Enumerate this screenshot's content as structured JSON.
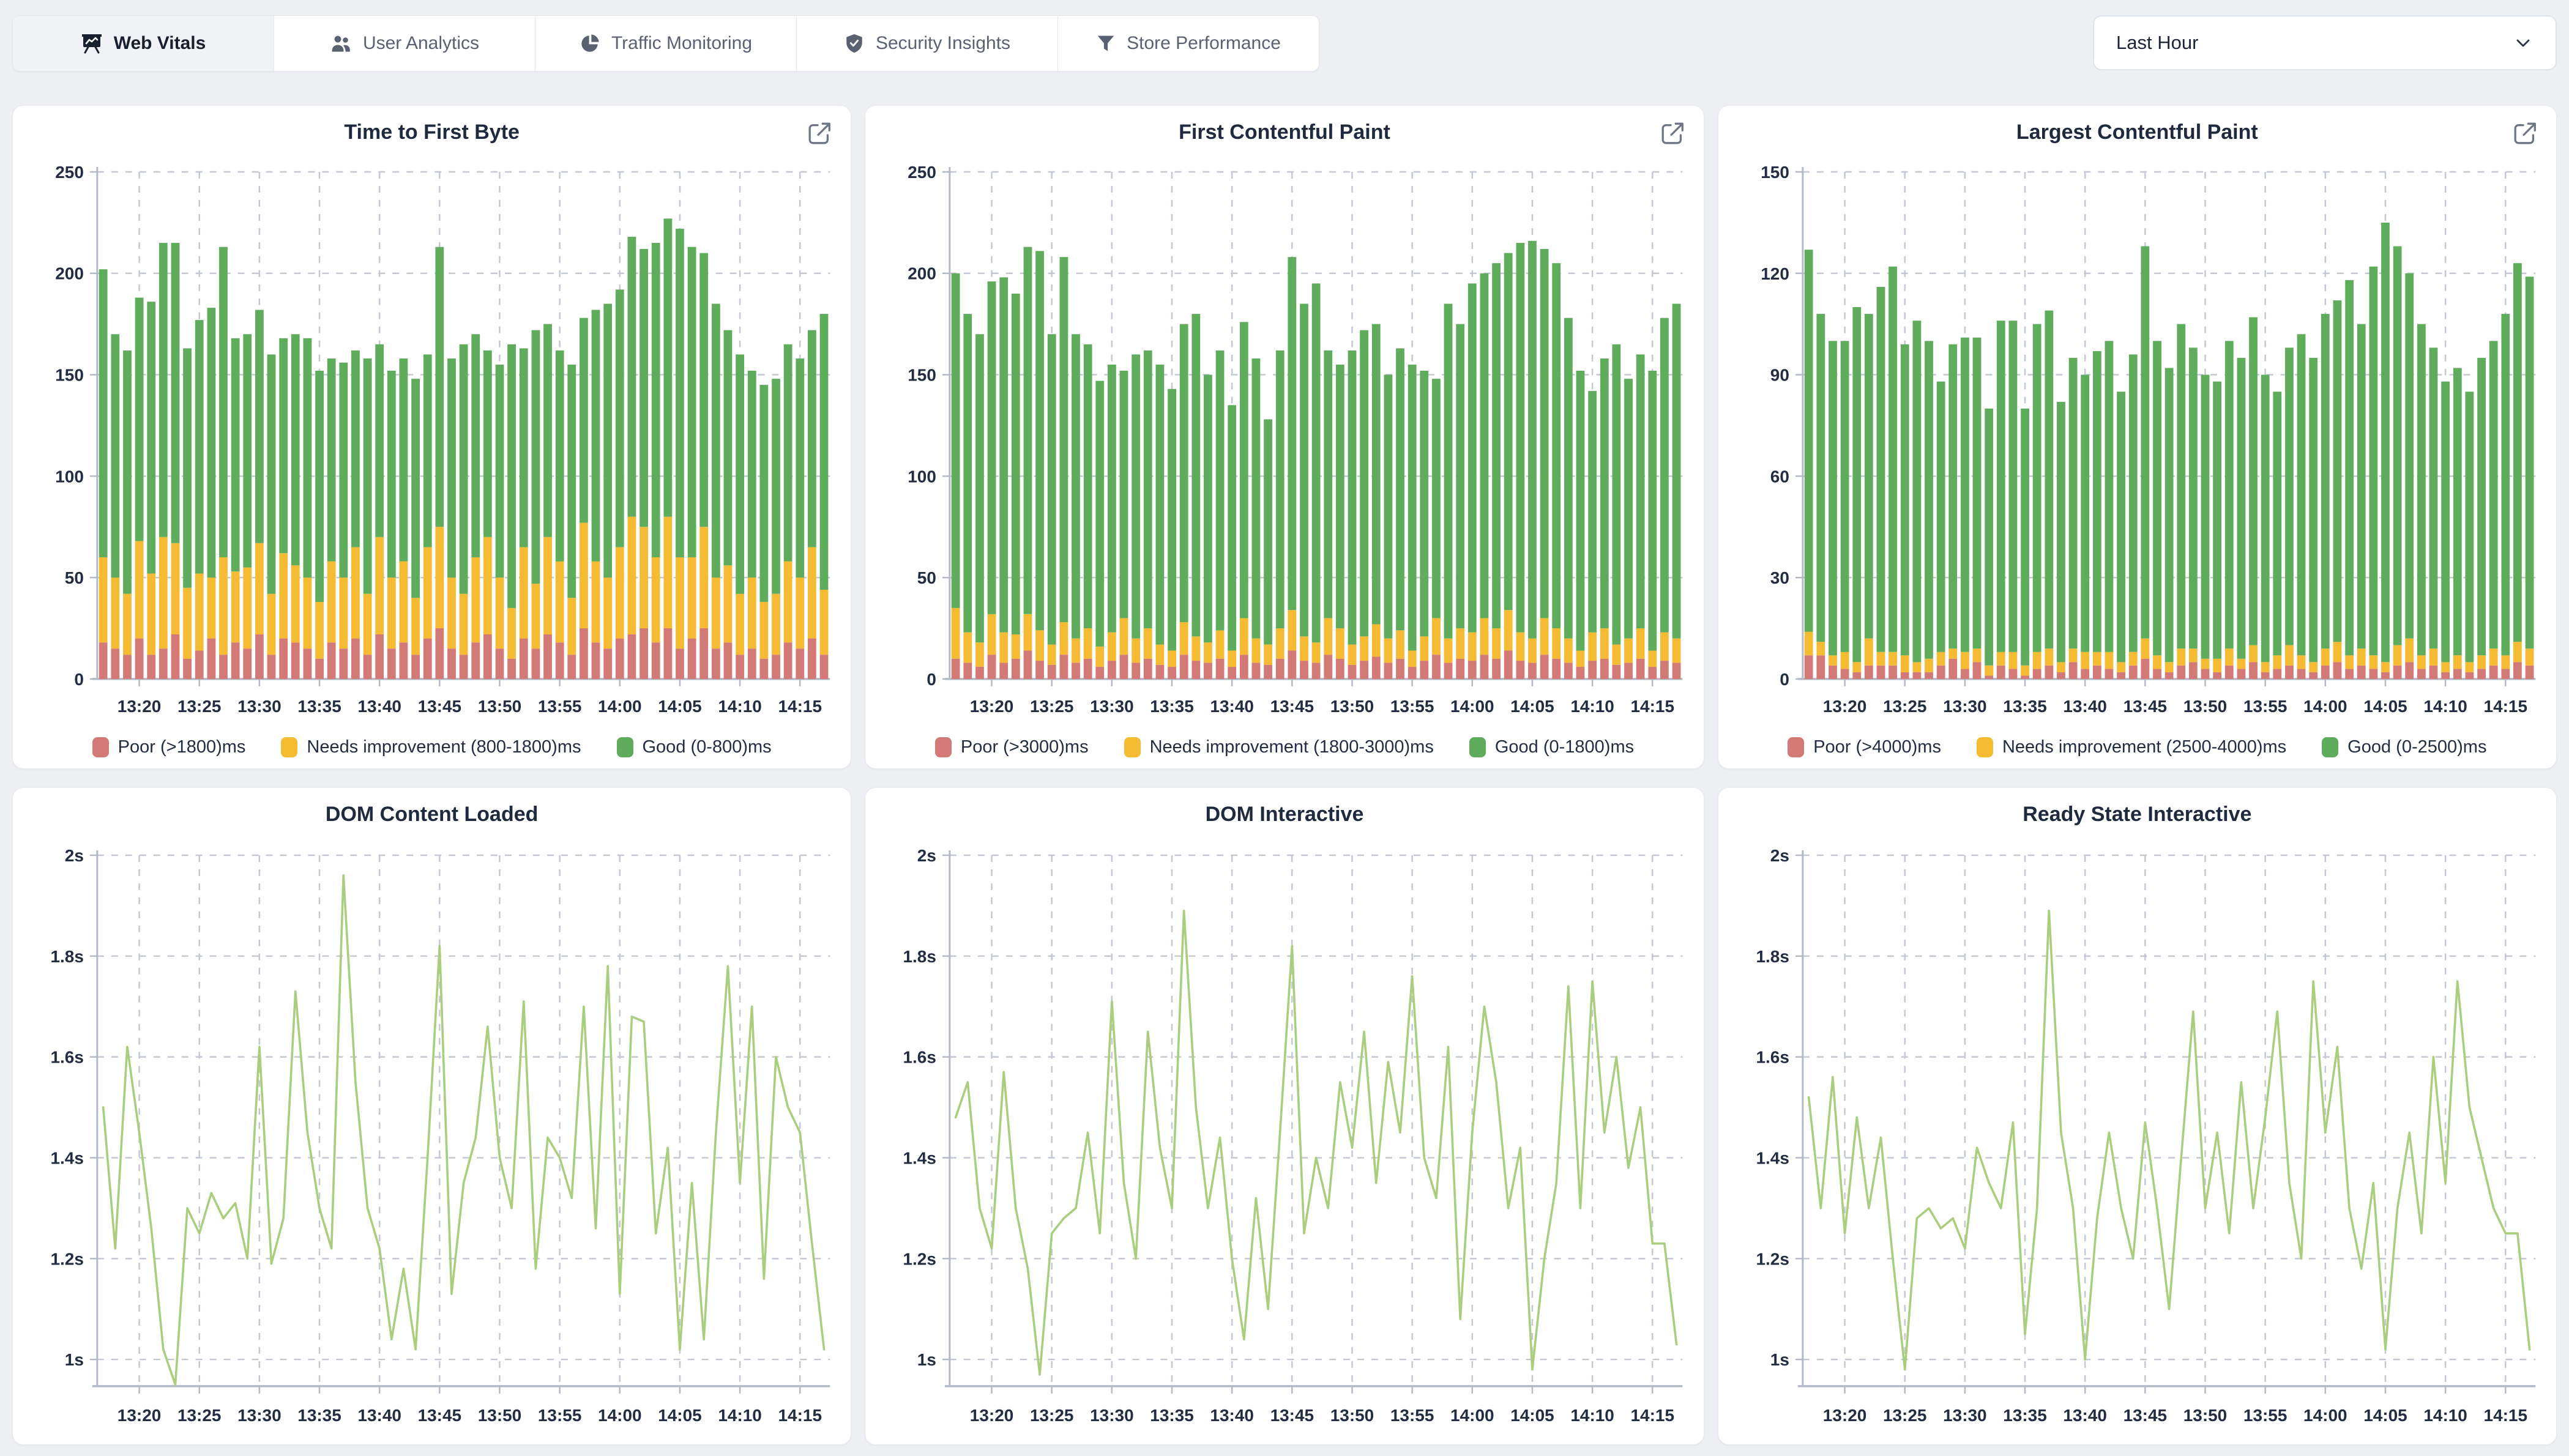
{
  "header": {
    "tabs": [
      {
        "label": "Web Vitals",
        "icon": "presentation-chart-icon",
        "active": true
      },
      {
        "label": "User Analytics",
        "icon": "users-icon",
        "active": false
      },
      {
        "label": "Traffic Monitoring",
        "icon": "pie-chart-icon",
        "active": false
      },
      {
        "label": "Security Insights",
        "icon": "shield-check-icon",
        "active": false
      },
      {
        "label": "Store Performance",
        "icon": "filter-icon",
        "active": false
      }
    ],
    "time_range_select": {
      "value": "Last Hour",
      "icon": "chevron-down-icon"
    }
  },
  "colors": {
    "poor": "#d47a76",
    "needs": "#f5bb33",
    "good": "#5fac5c",
    "line": "#a9ce7d",
    "grid": "#c3c8d3",
    "axis": "#b3bac6",
    "tick_text": "#232d42"
  },
  "time_axis": {
    "n_points": 61,
    "tick_labels": [
      "13:20",
      "13:25",
      "13:30",
      "13:35",
      "13:40",
      "13:45",
      "13:50",
      "13:55",
      "14:00",
      "14:05",
      "14:10",
      "14:15"
    ],
    "first_tick_index": 3,
    "tick_step": 5
  },
  "chart_data": [
    {
      "type": "bar",
      "stacked": true,
      "title": "Time to First Byte",
      "grid": "dashed",
      "legend_position": "bottom",
      "has_export_icon": true,
      "ylim": [
        0,
        250
      ],
      "y_ticks": [
        0,
        50,
        100,
        150,
        200,
        250
      ],
      "y_tick_labels": [
        "0",
        "50",
        "100",
        "150",
        "200",
        "250"
      ],
      "series": [
        {
          "name": "Poor (>1800)ms",
          "color_key": "poor",
          "values": [
            18,
            15,
            12,
            20,
            12,
            15,
            22,
            10,
            14,
            20,
            12,
            18,
            15,
            22,
            12,
            20,
            18,
            15,
            10,
            18,
            15,
            20,
            12,
            22,
            15,
            18,
            12,
            20,
            25,
            15,
            12,
            18,
            22,
            15,
            10,
            20,
            15,
            22,
            18,
            12,
            25,
            18,
            15,
            20,
            22,
            25,
            18,
            25,
            15,
            20,
            25,
            15,
            18,
            12,
            15,
            10,
            12,
            18,
            15,
            20,
            12
          ]
        },
        {
          "name": "Needs improvement (800-1800)ms",
          "color_key": "needs",
          "values": [
            42,
            35,
            30,
            48,
            40,
            55,
            45,
            35,
            38,
            30,
            48,
            35,
            40,
            45,
            30,
            42,
            38,
            35,
            28,
            40,
            35,
            45,
            30,
            48,
            35,
            40,
            28,
            45,
            50,
            35,
            30,
            42,
            48,
            35,
            25,
            45,
            32,
            48,
            40,
            28,
            52,
            40,
            35,
            45,
            58,
            50,
            42,
            55,
            45,
            40,
            50,
            35,
            38,
            30,
            35,
            28,
            30,
            40,
            35,
            45,
            32
          ]
        },
        {
          "name": "Good (0-800)ms",
          "color_key": "good",
          "values": [
            142,
            120,
            120,
            120,
            134,
            145,
            148,
            118,
            125,
            133,
            153,
            115,
            115,
            115,
            118,
            106,
            114,
            118,
            114,
            100,
            106,
            97,
            116,
            95,
            102,
            100,
            108,
            95,
            138,
            108,
            123,
            110,
            92,
            105,
            130,
            98,
            125,
            105,
            104,
            115,
            101,
            124,
            135,
            127,
            138,
            137,
            155,
            147,
            162,
            153,
            135,
            135,
            116,
            118,
            102,
            107,
            106,
            107,
            108,
            107,
            136
          ]
        }
      ]
    },
    {
      "type": "bar",
      "stacked": true,
      "title": "First Contentful Paint",
      "grid": "dashed",
      "legend_position": "bottom",
      "has_export_icon": true,
      "ylim": [
        0,
        250
      ],
      "y_ticks": [
        0,
        50,
        100,
        150,
        200,
        250
      ],
      "y_tick_labels": [
        "0",
        "50",
        "100",
        "150",
        "200",
        "250"
      ],
      "series": [
        {
          "name": "Poor (>3000)ms",
          "color_key": "poor",
          "values": [
            10,
            8,
            6,
            12,
            8,
            10,
            14,
            9,
            7,
            12,
            8,
            10,
            6,
            9,
            12,
            8,
            10,
            7,
            6,
            12,
            9,
            8,
            10,
            6,
            12,
            8,
            7,
            10,
            14,
            9,
            8,
            12,
            10,
            7,
            9,
            11,
            8,
            10,
            6,
            9,
            12,
            8,
            10,
            9,
            12,
            10,
            14,
            9,
            8,
            12,
            10,
            8,
            6,
            9,
            10,
            7,
            8,
            10,
            6,
            9,
            8
          ]
        },
        {
          "name": "Needs improvement (1800-3000)ms",
          "color_key": "needs",
          "values": [
            25,
            15,
            12,
            20,
            15,
            12,
            18,
            15,
            10,
            16,
            12,
            15,
            10,
            14,
            18,
            12,
            15,
            10,
            8,
            16,
            12,
            10,
            14,
            8,
            18,
            12,
            10,
            15,
            20,
            12,
            10,
            18,
            15,
            10,
            12,
            16,
            12,
            14,
            8,
            12,
            18,
            12,
            15,
            14,
            18,
            15,
            20,
            14,
            12,
            18,
            15,
            12,
            8,
            14,
            15,
            10,
            12,
            15,
            8,
            14,
            12
          ]
        },
        {
          "name": "Good (0-1800)ms",
          "color_key": "good",
          "values": [
            165,
            157,
            152,
            164,
            175,
            168,
            181,
            187,
            153,
            180,
            150,
            140,
            131,
            132,
            122,
            140,
            137,
            138,
            129,
            147,
            159,
            132,
            138,
            121,
            146,
            138,
            111,
            137,
            174,
            164,
            177,
            132,
            130,
            145,
            151,
            148,
            130,
            139,
            141,
            131,
            118,
            165,
            150,
            172,
            170,
            180,
            176,
            192,
            196,
            182,
            180,
            158,
            138,
            119,
            133,
            148,
            128,
            135,
            138,
            155,
            165
          ]
        }
      ]
    },
    {
      "type": "bar",
      "stacked": true,
      "title": "Largest Contentful Paint",
      "grid": "dashed",
      "legend_position": "bottom",
      "has_export_icon": true,
      "ylim": [
        0,
        150
      ],
      "y_ticks": [
        0,
        30,
        60,
        90,
        120,
        150
      ],
      "y_tick_labels": [
        "0",
        "30",
        "60",
        "90",
        "120",
        "150"
      ],
      "series": [
        {
          "name": "Poor (>4000)ms",
          "color_key": "poor",
          "values": [
            7,
            7,
            4,
            3,
            2,
            4,
            4,
            4,
            2,
            2,
            2,
            4,
            6,
            3,
            5,
            1,
            4,
            3,
            1,
            3,
            4,
            2,
            5,
            3,
            4,
            3,
            2,
            4,
            6,
            3,
            2,
            4,
            5,
            3,
            2,
            4,
            3,
            5,
            2,
            3,
            4,
            3,
            2,
            4,
            5,
            3,
            4,
            3,
            2,
            4,
            5,
            3,
            4,
            2,
            3,
            2,
            3,
            4,
            3,
            5,
            4
          ]
        },
        {
          "name": "Needs improvement (2500-4000)ms",
          "color_key": "needs",
          "values": [
            7,
            4,
            3,
            5,
            3,
            8,
            4,
            4,
            5,
            3,
            4,
            4,
            3,
            5,
            4,
            3,
            4,
            5,
            3,
            5,
            5,
            3,
            4,
            5,
            4,
            5,
            3,
            4,
            6,
            4,
            3,
            5,
            4,
            3,
            4,
            5,
            3,
            5,
            3,
            4,
            6,
            4,
            3,
            5,
            6,
            4,
            5,
            4,
            3,
            6,
            7,
            4,
            5,
            3,
            4,
            3,
            4,
            5,
            4,
            6,
            5
          ]
        },
        {
          "name": "Good (0-2500)ms",
          "color_key": "good",
          "values": [
            113,
            97,
            93,
            92,
            105,
            96,
            108,
            114,
            92,
            101,
            94,
            80,
            90,
            93,
            92,
            76,
            98,
            98,
            76,
            97,
            100,
            77,
            86,
            82,
            89,
            92,
            80,
            88,
            116,
            93,
            87,
            96,
            89,
            84,
            82,
            91,
            89,
            97,
            85,
            78,
            88,
            95,
            90,
            99,
            101,
            111,
            96,
            115,
            130,
            118,
            108,
            98,
            89,
            83,
            85,
            80,
            88,
            91,
            101,
            112,
            110
          ]
        }
      ]
    },
    {
      "type": "line",
      "title": "DOM Content Loaded",
      "grid": "dashed",
      "legend_position": "none",
      "has_export_icon": false,
      "ylim": [
        0.947,
        2.0
      ],
      "y_ticks": [
        1,
        1.2,
        1.4,
        1.6,
        1.8,
        2
      ],
      "y_tick_labels": [
        "1s",
        "1.2s",
        "1.4s",
        "1.6s",
        "1.8s",
        "2s"
      ],
      "series": [
        {
          "name": "DOM Content Loaded",
          "values": [
            1.5,
            1.22,
            1.62,
            1.45,
            1.26,
            1.02,
            0.95,
            1.3,
            1.25,
            1.33,
            1.28,
            1.31,
            1.2,
            1.62,
            1.19,
            1.28,
            1.73,
            1.45,
            1.3,
            1.22,
            1.96,
            1.55,
            1.3,
            1.22,
            1.04,
            1.18,
            1.02,
            1.4,
            1.82,
            1.13,
            1.35,
            1.44,
            1.66,
            1.4,
            1.3,
            1.71,
            1.18,
            1.44,
            1.4,
            1.32,
            1.7,
            1.26,
            1.78,
            1.13,
            1.68,
            1.67,
            1.25,
            1.42,
            1.02,
            1.35,
            1.04,
            1.45,
            1.78,
            1.35,
            1.7,
            1.16,
            1.6,
            1.5,
            1.45,
            1.23,
            1.02
          ]
        }
      ]
    },
    {
      "type": "line",
      "title": "DOM Interactive",
      "grid": "dashed",
      "legend_position": "none",
      "has_export_icon": false,
      "ylim": [
        0.947,
        2.0
      ],
      "y_ticks": [
        1,
        1.2,
        1.4,
        1.6,
        1.8,
        2
      ],
      "y_tick_labels": [
        "1s",
        "1.2s",
        "1.4s",
        "1.6s",
        "1.8s",
        "2s"
      ],
      "series": [
        {
          "name": "DOM Interactive",
          "values": [
            1.48,
            1.55,
            1.3,
            1.22,
            1.57,
            1.3,
            1.18,
            0.97,
            1.25,
            1.28,
            1.3,
            1.45,
            1.25,
            1.71,
            1.35,
            1.2,
            1.65,
            1.42,
            1.3,
            1.89,
            1.5,
            1.3,
            1.44,
            1.2,
            1.04,
            1.32,
            1.1,
            1.45,
            1.82,
            1.25,
            1.4,
            1.3,
            1.55,
            1.42,
            1.65,
            1.35,
            1.59,
            1.45,
            1.76,
            1.4,
            1.32,
            1.62,
            1.08,
            1.45,
            1.7,
            1.55,
            1.3,
            1.42,
            0.98,
            1.2,
            1.35,
            1.74,
            1.3,
            1.75,
            1.45,
            1.6,
            1.38,
            1.5,
            1.23,
            1.23,
            1.03
          ]
        }
      ]
    },
    {
      "type": "line",
      "title": "Ready State Interactive",
      "grid": "dashed",
      "legend_position": "none",
      "has_export_icon": false,
      "ylim": [
        0.947,
        2.0
      ],
      "y_ticks": [
        1,
        1.2,
        1.4,
        1.6,
        1.8,
        2
      ],
      "y_tick_labels": [
        "1s",
        "1.2s",
        "1.4s",
        "1.6s",
        "1.8s",
        "2s"
      ],
      "series": [
        {
          "name": "Ready State Interactive",
          "values": [
            1.52,
            1.3,
            1.56,
            1.25,
            1.48,
            1.3,
            1.44,
            1.2,
            0.98,
            1.28,
            1.3,
            1.26,
            1.28,
            1.22,
            1.42,
            1.35,
            1.3,
            1.47,
            1.05,
            1.3,
            1.89,
            1.45,
            1.3,
            1.0,
            1.28,
            1.45,
            1.3,
            1.2,
            1.47,
            1.3,
            1.1,
            1.4,
            1.69,
            1.3,
            1.45,
            1.25,
            1.55,
            1.3,
            1.48,
            1.69,
            1.35,
            1.2,
            1.75,
            1.45,
            1.62,
            1.3,
            1.18,
            1.35,
            1.02,
            1.3,
            1.45,
            1.25,
            1.6,
            1.35,
            1.75,
            1.5,
            1.4,
            1.3,
            1.25,
            1.25,
            1.02
          ]
        }
      ]
    }
  ]
}
